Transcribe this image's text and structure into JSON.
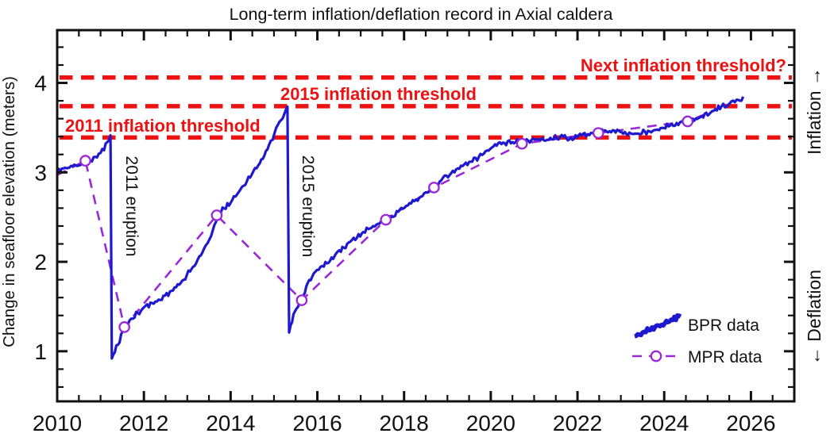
{
  "chart_data": {
    "type": "line",
    "title": "Long-term inflation/deflation record in Axial caldera",
    "ylabel": "Change in seafloor elevation (meters)",
    "xlim": [
      2010,
      2027
    ],
    "ylim": [
      0.44,
      4.59
    ],
    "x_major_ticks": [
      2010,
      2012,
      2014,
      2016,
      2018,
      2020,
      2022,
      2024,
      2026
    ],
    "x_minor_step": 0.5,
    "y_major_ticks": [
      1,
      2,
      3,
      4
    ],
    "y_minor_step": 0.2,
    "grid": false,
    "legend_position": "lower right",
    "direction_labels": {
      "up": "Inflation →",
      "down": "← Deflation"
    },
    "threshold_lines": [
      {
        "label": "2011 inflation threshold",
        "value": 3.39
      },
      {
        "label": "2015 inflation threshold",
        "value": 3.74
      },
      {
        "label": "Next inflation threshold?",
        "value": 4.06
      }
    ],
    "eruption_lines": [
      {
        "label": "2011 eruption",
        "year": 2011.25
      },
      {
        "label": "2015 eruption",
        "year": 2015.31
      }
    ],
    "series": [
      {
        "name": "BPR data",
        "style": "noisy-line",
        "color": "#1e18cf",
        "points": [
          [
            2010.0,
            3.02
          ],
          [
            2010.25,
            3.06
          ],
          [
            2010.5,
            3.08
          ],
          [
            2010.65,
            3.12
          ],
          [
            2010.8,
            3.14
          ],
          [
            2011.0,
            3.22
          ],
          [
            2011.12,
            3.3
          ],
          [
            2011.23,
            3.4
          ],
          [
            2011.26,
            0.92
          ],
          [
            2011.4,
            1.08
          ],
          [
            2011.55,
            1.26
          ],
          [
            2011.75,
            1.38
          ],
          [
            2012.0,
            1.49
          ],
          [
            2012.3,
            1.56
          ],
          [
            2012.6,
            1.66
          ],
          [
            2012.85,
            1.76
          ],
          [
            2013.1,
            1.92
          ],
          [
            2013.35,
            2.1
          ],
          [
            2013.55,
            2.3
          ],
          [
            2013.7,
            2.52
          ],
          [
            2014.0,
            2.67
          ],
          [
            2014.3,
            2.86
          ],
          [
            2014.6,
            3.06
          ],
          [
            2014.85,
            3.25
          ],
          [
            2015.05,
            3.48
          ],
          [
            2015.2,
            3.61
          ],
          [
            2015.31,
            3.72
          ],
          [
            2015.35,
            1.21
          ],
          [
            2015.45,
            1.4
          ],
          [
            2015.55,
            1.5
          ],
          [
            2015.64,
            1.58
          ],
          [
            2015.78,
            1.76
          ],
          [
            2015.95,
            1.88
          ],
          [
            2016.15,
            1.96
          ],
          [
            2016.4,
            2.07
          ],
          [
            2016.65,
            2.18
          ],
          [
            2016.95,
            2.29
          ],
          [
            2017.25,
            2.4
          ],
          [
            2017.58,
            2.47
          ],
          [
            2017.9,
            2.56
          ],
          [
            2018.2,
            2.68
          ],
          [
            2018.5,
            2.77
          ],
          [
            2018.7,
            2.83
          ],
          [
            2018.9,
            2.94
          ],
          [
            2019.2,
            3.03
          ],
          [
            2019.5,
            3.1
          ],
          [
            2019.8,
            3.2
          ],
          [
            2020.1,
            3.3
          ],
          [
            2020.5,
            3.34
          ],
          [
            2020.9,
            3.36
          ],
          [
            2021.3,
            3.37
          ],
          [
            2021.6,
            3.4
          ],
          [
            2021.85,
            3.38
          ],
          [
            2022.2,
            3.43
          ],
          [
            2022.6,
            3.46
          ],
          [
            2022.95,
            3.46
          ],
          [
            2023.3,
            3.42
          ],
          [
            2023.7,
            3.47
          ],
          [
            2024.1,
            3.52
          ],
          [
            2024.55,
            3.57
          ],
          [
            2024.9,
            3.63
          ],
          [
            2025.25,
            3.72
          ],
          [
            2025.55,
            3.78
          ],
          [
            2025.82,
            3.83
          ]
        ]
      },
      {
        "name": "MPR data",
        "style": "dashed-line-with-circles",
        "color": "#9a28d8",
        "points": [
          [
            2010.0,
            2.97
          ],
          [
            2010.65,
            3.13
          ],
          [
            2011.55,
            1.27
          ],
          [
            2013.68,
            2.52
          ],
          [
            2015.64,
            1.57
          ],
          [
            2017.58,
            2.47
          ],
          [
            2018.69,
            2.83
          ],
          [
            2020.72,
            3.32
          ],
          [
            2022.48,
            3.44
          ],
          [
            2024.54,
            3.57
          ],
          [
            2025.3,
            3.72
          ]
        ],
        "markers": [
          [
            2010.65,
            3.13
          ],
          [
            2011.55,
            1.27
          ],
          [
            2013.68,
            2.52
          ],
          [
            2015.64,
            1.57
          ],
          [
            2017.58,
            2.47
          ],
          [
            2018.69,
            2.83
          ],
          [
            2020.72,
            3.32
          ],
          [
            2022.48,
            3.44
          ],
          [
            2024.54,
            3.57
          ]
        ]
      }
    ]
  },
  "colors": {
    "bpr_blue": "#1e18cf",
    "mpr_purple": "#9a28d8",
    "threshold_red": "#ec1212",
    "axis_black": "#111111",
    "background": "#ffffff"
  }
}
